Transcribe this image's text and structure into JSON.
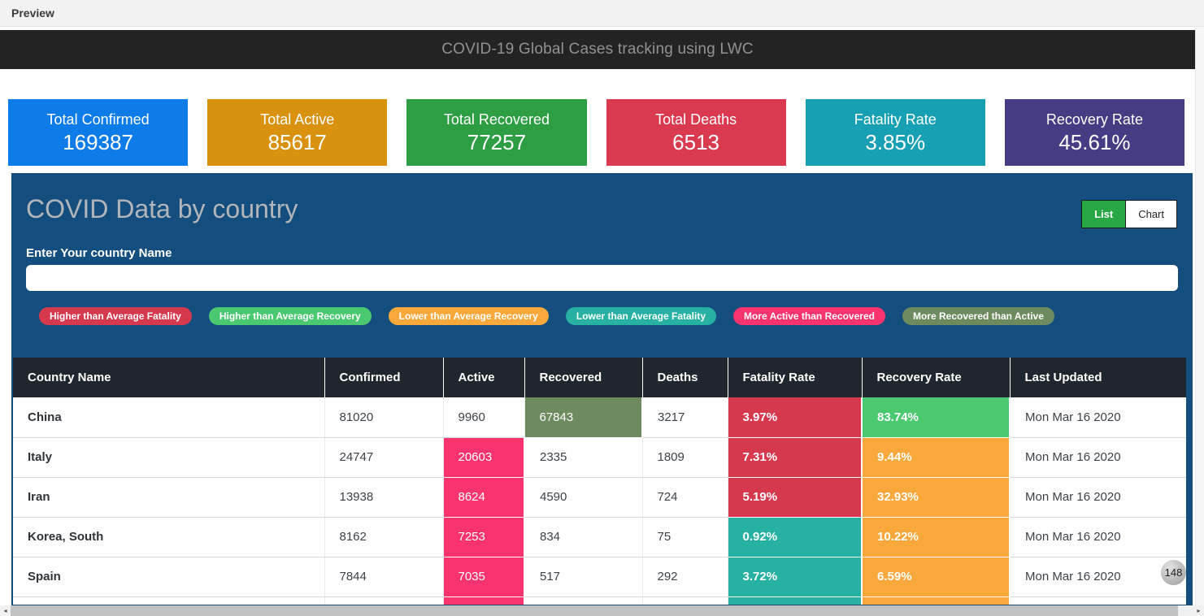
{
  "preview_bar": {
    "title": "Preview"
  },
  "header": {
    "title": "COVID-19 Global Cases tracking using LWC"
  },
  "colors": {
    "card_blue": "#0d7ce8",
    "card_orange": "#d8920f",
    "card_green": "#2e9e44",
    "card_red": "#da3a50",
    "card_teal": "#17a0b4",
    "card_purple": "#453c83",
    "panel_blue": "#134e7e",
    "header_dark": "#20262e",
    "list_active_green": "#28a745",
    "badge_red": "#d6394e",
    "badge_green": "#4bc970",
    "badge_orange": "#f9a83c",
    "badge_teal": "#26b1a2",
    "badge_pink": "#f9336e",
    "badge_olive": "#6d8b5e",
    "cell_red": "#d6394e",
    "cell_green": "#4bc970",
    "cell_orange": "#f9a83c",
    "cell_teal": "#26b1a2",
    "cell_pink": "#f9336e",
    "cell_olive": "#6d8b5e"
  },
  "stat_cards": [
    {
      "label": "Total Confirmed",
      "value": "169387",
      "color": "#0d7ce8"
    },
    {
      "label": "Total Active",
      "value": "85617",
      "color": "#d8920f"
    },
    {
      "label": "Total Recovered",
      "value": "77257",
      "color": "#2e9e44"
    },
    {
      "label": "Total Deaths",
      "value": "6513",
      "color": "#da3a50"
    },
    {
      "label": "Fatality Rate",
      "value": "3.85%",
      "color": "#17a0b4"
    },
    {
      "label": "Recovery Rate",
      "value": "45.61%",
      "color": "#453c83"
    }
  ],
  "panel": {
    "title": "COVID Data by country",
    "toggle": {
      "list_label": "List",
      "chart_label": "Chart",
      "active": "List"
    },
    "search": {
      "label": "Enter Your country Name",
      "value": "",
      "placeholder": ""
    },
    "legend": [
      {
        "label": "Higher than Average Fatality",
        "color": "#d6394e"
      },
      {
        "label": "Higher than Average Recovery",
        "color": "#4bc970"
      },
      {
        "label": "Lower than Average Recovery",
        "color": "#f9a83c"
      },
      {
        "label": "Lower than Average Fatality",
        "color": "#26b1a2"
      },
      {
        "label": "More Active than Recovered",
        "color": "#f9336e"
      },
      {
        "label": "More Recovered than Active",
        "color": "#6d8b5e"
      }
    ]
  },
  "table": {
    "columns": [
      "Country Name",
      "Confirmed",
      "Active",
      "Recovered",
      "Deaths",
      "Fatality Rate",
      "Recovery Rate",
      "Last Updated"
    ],
    "rows": [
      {
        "country": "China",
        "confirmed": "81020",
        "active": "9960",
        "active_color": "",
        "recovered": "67843",
        "recovered_color": "cell_olive",
        "deaths": "3217",
        "fatality": "3.97%",
        "fatality_color": "cell_red",
        "recovery": "83.74%",
        "recovery_color": "cell_green",
        "updated": "Mon Mar 16 2020"
      },
      {
        "country": "Italy",
        "confirmed": "24747",
        "active": "20603",
        "active_color": "cell_pink",
        "recovered": "2335",
        "recovered_color": "",
        "deaths": "1809",
        "fatality": "7.31%",
        "fatality_color": "cell_red",
        "recovery": "9.44%",
        "recovery_color": "cell_orange",
        "updated": "Mon Mar 16 2020"
      },
      {
        "country": "Iran",
        "confirmed": "13938",
        "active": "8624",
        "active_color": "cell_pink",
        "recovered": "4590",
        "recovered_color": "",
        "deaths": "724",
        "fatality": "5.19%",
        "fatality_color": "cell_red",
        "recovery": "32.93%",
        "recovery_color": "cell_orange",
        "updated": "Mon Mar 16 2020"
      },
      {
        "country": "Korea, South",
        "confirmed": "8162",
        "active": "7253",
        "active_color": "cell_pink",
        "recovered": "834",
        "recovered_color": "",
        "deaths": "75",
        "fatality": "0.92%",
        "fatality_color": "cell_teal",
        "recovery": "10.22%",
        "recovery_color": "cell_orange",
        "updated": "Mon Mar 16 2020"
      },
      {
        "country": "Spain",
        "confirmed": "7844",
        "active": "7035",
        "active_color": "cell_pink",
        "recovered": "517",
        "recovered_color": "",
        "deaths": "292",
        "fatality": "3.72%",
        "fatality_color": "cell_teal",
        "recovery": "6.59%",
        "recovery_color": "cell_orange",
        "updated": "Mon Mar 16 2020"
      },
      {
        "country": "",
        "confirmed": "",
        "active": "",
        "active_color": "cell_pink",
        "recovered": "",
        "recovered_color": "",
        "deaths": "",
        "fatality": "",
        "fatality_color": "cell_teal",
        "recovery": "",
        "recovery_color": "cell_orange",
        "updated": ""
      }
    ]
  },
  "floating_badge": {
    "value": "148"
  },
  "scrollbar": {
    "left_arrow": "◂",
    "right_arrow": "▸"
  }
}
